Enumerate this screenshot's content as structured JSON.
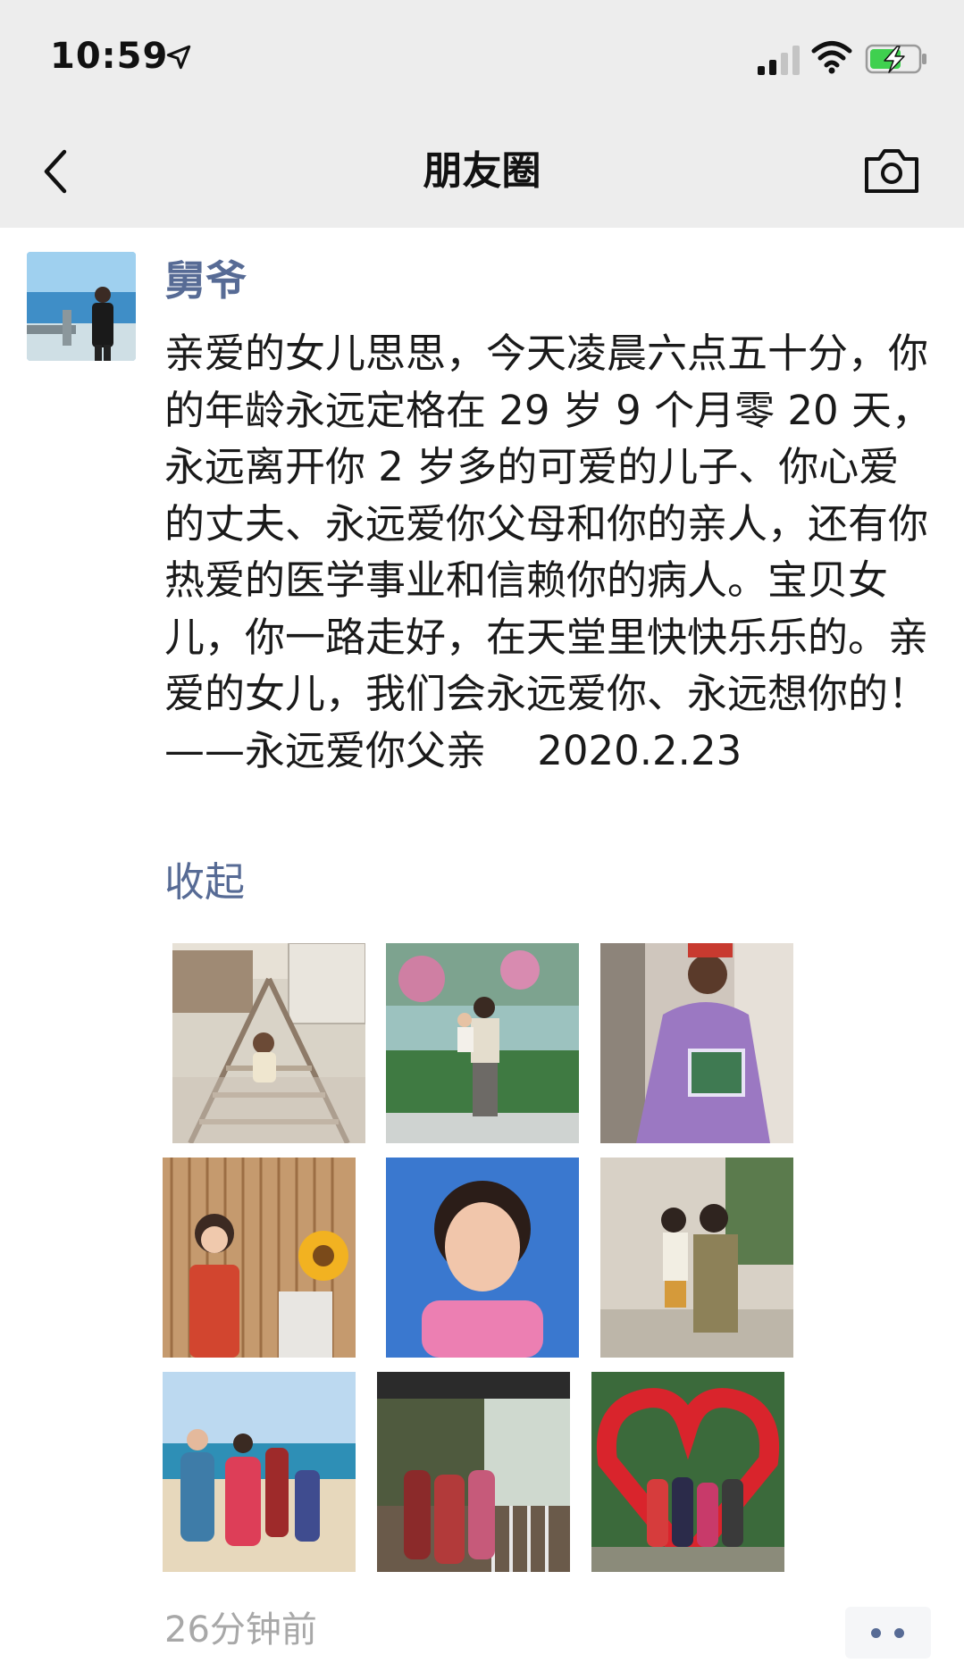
{
  "status_bar": {
    "time": "10:59"
  },
  "nav": {
    "title": "朋友圈"
  },
  "post": {
    "author": "舅爷",
    "text": "亲爱的女儿思思，今天凌晨六点五十分，你的年龄永远定格在 29 岁 9 个月零 20 天，永远离开你 2 岁多的可爱的儿子、你心爱的丈夫、永远爱你父母和你的亲人，还有你热爱的医学事业和信赖你的病人。宝贝女儿，你一路走好，在天堂里快快乐乐的。亲爱的女儿，我们会永远爱你、永远想你的！——永远爱你父亲    2020.2.23",
    "collapse_label": "收起",
    "timestamp": "26分钟前"
  },
  "colors": {
    "link": "#576b95",
    "header_bg": "#ededed",
    "battery_green": "#3fd04f",
    "text": "#1a1a1a",
    "muted": "#a8a8a8"
  },
  "icons": [
    "location-arrow-icon",
    "signal-icon",
    "wifi-icon",
    "battery-charging-icon",
    "back-chevron-icon",
    "camera-icon",
    "more-dots-icon"
  ]
}
